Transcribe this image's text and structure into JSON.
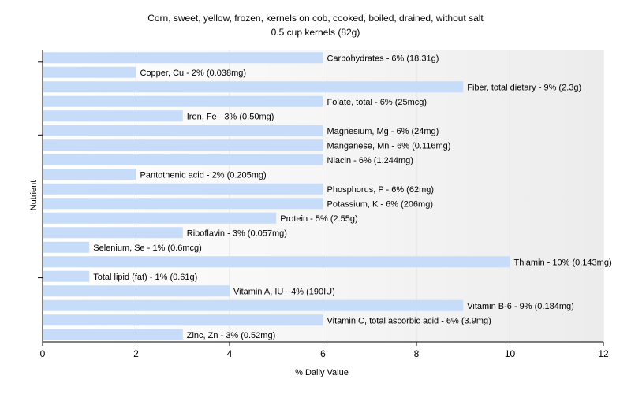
{
  "chart_data": {
    "type": "bar",
    "orientation": "horizontal",
    "title": "Corn, sweet, yellow, frozen, kernels on cob, cooked, boiled, drained, without salt",
    "subtitle": "0.5 cup kernels (82g)",
    "xlabel": "% Daily Value",
    "ylabel": "Nutrient",
    "xlim": [
      0,
      12
    ],
    "xticks": [
      0,
      2,
      4,
      6,
      8,
      10,
      12
    ],
    "grid": true,
    "bar_color": "#c6dcf8",
    "categories": [
      "Carbohydrates",
      "Copper, Cu",
      "Fiber, total dietary",
      "Folate, total",
      "Iron, Fe",
      "Magnesium, Mg",
      "Manganese, Mn",
      "Niacin",
      "Pantothenic acid",
      "Phosphorus, P",
      "Potassium, K",
      "Protein",
      "Riboflavin",
      "Selenium, Se",
      "Thiamin",
      "Total lipid (fat)",
      "Vitamin A, IU",
      "Vitamin B-6",
      "Vitamin C, total ascorbic acid",
      "Zinc, Zn"
    ],
    "values": [
      6,
      2,
      9,
      6,
      3,
      6,
      6,
      6,
      2,
      6,
      6,
      5,
      3,
      1,
      10,
      1,
      4,
      9,
      6,
      3
    ],
    "labels": [
      "Carbohydrates - 6% (18.31g)",
      "Copper, Cu - 2% (0.038mg)",
      "Fiber, total dietary - 9% (2.3g)",
      "Folate, total - 6% (25mcg)",
      "Iron, Fe - 3% (0.50mg)",
      "Magnesium, Mg - 6% (24mg)",
      "Manganese, Mn - 6% (0.116mg)",
      "Niacin - 6% (1.244mg)",
      "Pantothenic acid - 2% (0.205mg)",
      "Phosphorus, P - 6% (62mg)",
      "Potassium, K - 6% (206mg)",
      "Protein - 5% (2.55g)",
      "Riboflavin - 3% (0.057mg)",
      "Selenium, Se - 1% (0.6mcg)",
      "Thiamin - 10% (0.143mg)",
      "Total lipid (fat) - 1% (0.61g)",
      "Vitamin A, IU - 4% (190IU)",
      "Vitamin B-6 - 9% (0.184mg)",
      "Vitamin C, total ascorbic acid - 6% (3.9mg)",
      "Zinc, Zn - 3% (0.52mg)"
    ]
  }
}
